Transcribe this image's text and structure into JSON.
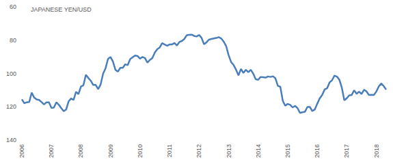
{
  "chart_data": {
    "type": "line",
    "title": "JAPANESE YEN/USD",
    "color": "#4a7ebb",
    "grid": false,
    "categories": [
      "2006",
      null,
      null,
      null,
      null,
      null,
      null,
      null,
      null,
      null,
      null,
      null,
      "2007",
      null,
      null,
      null,
      null,
      null,
      null,
      null,
      null,
      null,
      null,
      null,
      "2008",
      null,
      null,
      null,
      null,
      null,
      null,
      null,
      null,
      null,
      null,
      null,
      "2009",
      null,
      null,
      null,
      null,
      null,
      null,
      null,
      null,
      null,
      null,
      null,
      "2010",
      null,
      null,
      null,
      null,
      null,
      null,
      null,
      null,
      null,
      null,
      null,
      "2011",
      null,
      null,
      null,
      null,
      null,
      null,
      null,
      null,
      null,
      null,
      null,
      "2012",
      null,
      null,
      null,
      null,
      null,
      null,
      null,
      null,
      null,
      null,
      null,
      "2013",
      null,
      null,
      null,
      null,
      null,
      null,
      null,
      null,
      null,
      null,
      null,
      "2014",
      null,
      null,
      null,
      null,
      null,
      null,
      null,
      null,
      null,
      null,
      null,
      "2015",
      null,
      null,
      null,
      null,
      null,
      null,
      null,
      null,
      null,
      null,
      null,
      "2016",
      null,
      null,
      null,
      null,
      null,
      null,
      null,
      null,
      null,
      null,
      null,
      "2017",
      null,
      null,
      null,
      null,
      null,
      null,
      null,
      null,
      null,
      null,
      null,
      "2018",
      null,
      null,
      null,
      null
    ],
    "values": [
      115.5,
      117.9,
      117.3,
      117.1,
      111.5,
      114.5,
      115.6,
      115.9,
      117.2,
      118.6,
      117.3,
      117.3,
      120.6,
      120.5,
      117.3,
      118.8,
      120.8,
      122.7,
      121.6,
      116.7,
      115.0,
      115.9,
      111.0,
      112.4,
      107.8,
      107.1,
      100.8,
      102.7,
      104.4,
      106.9,
      106.9,
      109.4,
      106.6,
      100.1,
      96.9,
      91.3,
      90.1,
      92.9,
      97.8,
      98.9,
      96.6,
      96.6,
      94.5,
      95.0,
      91.4,
      90.3,
      89.2,
      89.5,
      91.1,
      90.1,
      90.7,
      93.5,
      91.9,
      90.8,
      87.5,
      85.4,
      84.4,
      81.8,
      82.6,
      83.3,
      82.6,
      82.6,
      81.7,
      83.2,
      81.1,
      80.5,
      79.3,
      77.0,
      76.8,
      76.7,
      77.5,
      77.8,
      76.9,
      78.6,
      82.5,
      81.3,
      79.7,
      79.3,
      79.0,
      78.7,
      78.2,
      79.0,
      80.9,
      83.6,
      89.1,
      93.1,
      94.9,
      97.7,
      101.1,
      97.3,
      99.7,
      97.8,
      99.2,
      97.8,
      100.1,
      103.5,
      103.8,
      102.1,
      102.3,
      102.5,
      101.8,
      102.1,
      101.7,
      102.9,
      107.4,
      108.0,
      116.4,
      119.4,
      118.3,
      118.8,
      120.4,
      119.5,
      120.8,
      123.7,
      123.3,
      123.0,
      120.1,
      120.1,
      122.6,
      121.6,
      118.2,
      115.0,
      112.9,
      109.6,
      108.9,
      105.4,
      104.1,
      101.3,
      101.9,
      103.8,
      108.6,
      116.1,
      114.9,
      113.1,
      112.9,
      110.1,
      112.2,
      110.9,
      112.4,
      109.8,
      110.8,
      112.9,
      112.8,
      112.9,
      110.9,
      107.8,
      106.0,
      107.6,
      109.7
    ],
    "ylim": [
      60,
      140
    ],
    "yticks": [
      60,
      80,
      100,
      120,
      140
    ]
  }
}
